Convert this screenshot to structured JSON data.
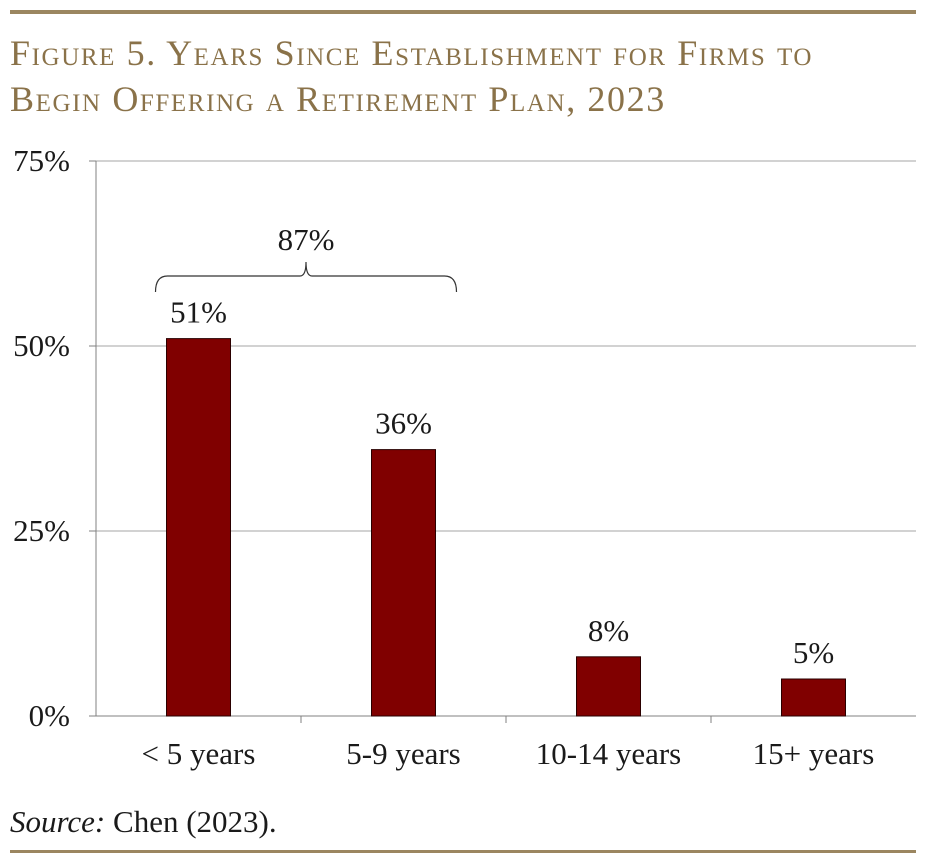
{
  "figure": {
    "title_line1": "Figure 5. Years Since Establishment for Firms to",
    "title_line2": "Begin Offering a Retirement Plan, 2023",
    "source_label": "Source:",
    "source_text": "Chen (2023)."
  },
  "chart_data": {
    "type": "bar",
    "title": "Figure 5. Years Since Establishment for Firms to Begin Offering a Retirement Plan, 2023",
    "categories": [
      "< 5 years",
      "5-9 years",
      "10-14 years",
      "15+ years"
    ],
    "values": [
      51,
      36,
      8,
      5
    ],
    "data_labels": [
      "51%",
      "36%",
      "8%",
      "5%"
    ],
    "ylim": [
      0,
      75
    ],
    "yticks": [
      0,
      25,
      50,
      75
    ],
    "ytick_labels": [
      "0%",
      "25%",
      "50%",
      "75%"
    ],
    "xlabel": "",
    "ylabel": "",
    "grid": true,
    "bar_color": "#800000",
    "annotation": {
      "label": "87%",
      "span_categories": [
        0,
        1
      ]
    }
  }
}
